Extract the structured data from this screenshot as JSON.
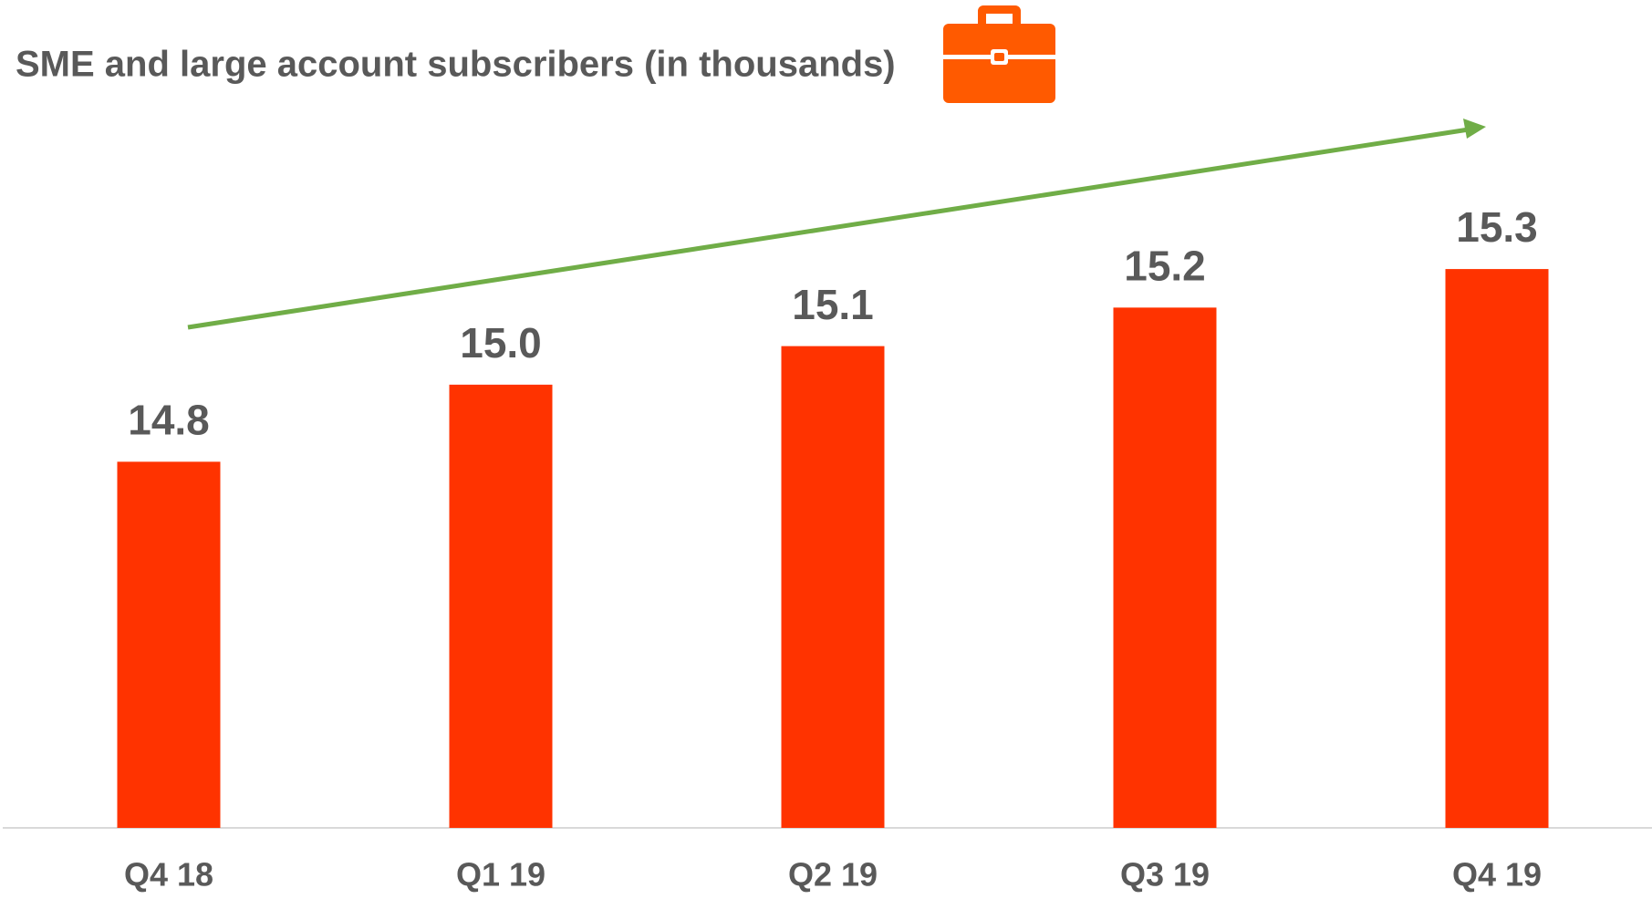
{
  "chart_data": {
    "type": "bar",
    "title": "SME and large account subscribers (in thousands)",
    "categories": [
      "Q4 18",
      "Q1 19",
      "Q2 19",
      "Q3 19",
      "Q4 19"
    ],
    "values": [
      14.8,
      15.0,
      15.1,
      15.2,
      15.3
    ],
    "value_labels": [
      "14.8",
      "15.0",
      "15.1",
      "15.2",
      "15.3"
    ],
    "color": "#ff3300",
    "ylim": [
      13.85,
      15.7
    ]
  }
}
